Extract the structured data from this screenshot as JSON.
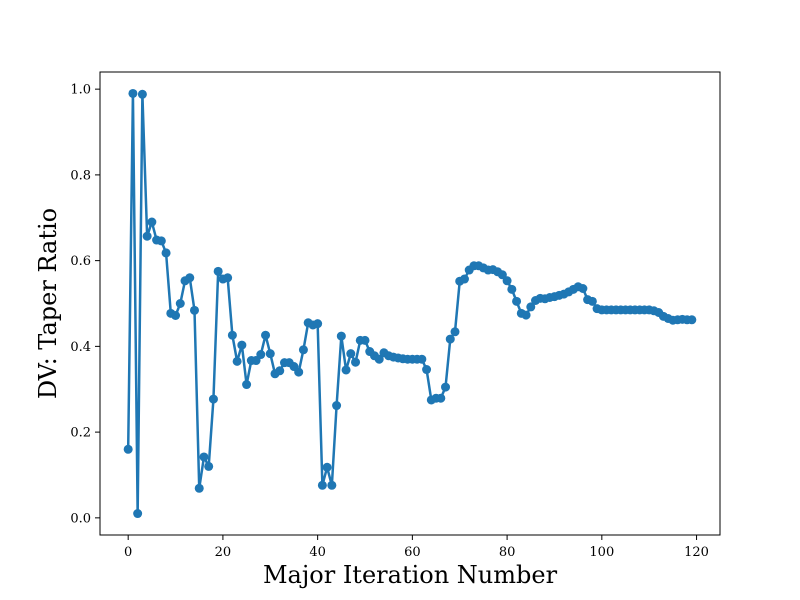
{
  "chart_data": {
    "type": "line",
    "title": "",
    "xlabel": "Major Iteration Number",
    "ylabel": "DV: Taper Ratio",
    "xlim": [
      -5.95,
      124.95
    ],
    "ylim": [
      -0.04,
      1.04
    ],
    "xticks": [
      0,
      20,
      40,
      60,
      80,
      100,
      120
    ],
    "yticks": [
      0.0,
      0.2,
      0.4,
      0.6,
      0.8,
      1.0
    ],
    "ytick_labels": [
      "0.0",
      "0.2",
      "0.4",
      "0.6",
      "0.8",
      "1.0"
    ],
    "grid": false,
    "color": "#1f77b4",
    "series": [
      {
        "x": [
          0,
          1,
          2,
          3,
          4,
          5,
          6,
          7,
          8,
          9,
          10,
          11,
          12,
          13,
          14,
          15,
          16,
          17,
          18,
          19,
          20,
          21,
          22,
          23,
          24,
          25,
          26,
          27,
          28,
          29,
          30,
          31,
          32,
          33,
          34,
          35,
          36,
          37,
          38,
          39,
          40,
          41,
          42,
          43,
          44,
          45,
          46,
          47,
          48,
          49,
          50,
          51,
          52,
          53,
          54,
          55,
          56,
          57,
          58,
          59,
          60,
          61,
          62,
          63,
          64,
          65,
          66,
          67,
          68,
          69,
          70,
          71,
          72,
          73,
          74,
          75,
          76,
          77,
          78,
          79,
          80,
          81,
          82,
          83,
          84,
          85,
          86,
          87,
          88,
          89,
          90,
          91,
          92,
          93,
          94,
          95,
          96,
          97,
          98,
          99,
          100,
          101,
          102,
          103,
          104,
          105,
          106,
          107,
          108,
          109,
          110,
          111,
          112,
          113,
          114,
          115,
          116,
          117,
          118,
          119
        ],
        "values": [
          0.16,
          0.99,
          0.01,
          0.988,
          0.657,
          0.69,
          0.648,
          0.646,
          0.618,
          0.477,
          0.472,
          0.5,
          0.553,
          0.56,
          0.484,
          0.069,
          0.142,
          0.12,
          0.277,
          0.575,
          0.557,
          0.56,
          0.426,
          0.365,
          0.403,
          0.311,
          0.367,
          0.367,
          0.381,
          0.426,
          0.383,
          0.336,
          0.343,
          0.362,
          0.362,
          0.353,
          0.34,
          0.392,
          0.455,
          0.45,
          0.453,
          0.076,
          0.118,
          0.076,
          0.262,
          0.424,
          0.345,
          0.383,
          0.363,
          0.414,
          0.414,
          0.388,
          0.378,
          0.37,
          0.385,
          0.378,
          0.375,
          0.373,
          0.371,
          0.37,
          0.37,
          0.37,
          0.37,
          0.346,
          0.275,
          0.279,
          0.279,
          0.305,
          0.417,
          0.434,
          0.552,
          0.557,
          0.578,
          0.588,
          0.588,
          0.583,
          0.578,
          0.579,
          0.574,
          0.567,
          0.553,
          0.533,
          0.505,
          0.477,
          0.473,
          0.492,
          0.507,
          0.512,
          0.511,
          0.514,
          0.516,
          0.519,
          0.522,
          0.527,
          0.533,
          0.539,
          0.535,
          0.509,
          0.505,
          0.488,
          0.485,
          0.485,
          0.485,
          0.485,
          0.485,
          0.485,
          0.485,
          0.485,
          0.485,
          0.485,
          0.485,
          0.483,
          0.479,
          0.47,
          0.465,
          0.461,
          0.462,
          0.463,
          0.462,
          0.462
        ]
      }
    ]
  }
}
